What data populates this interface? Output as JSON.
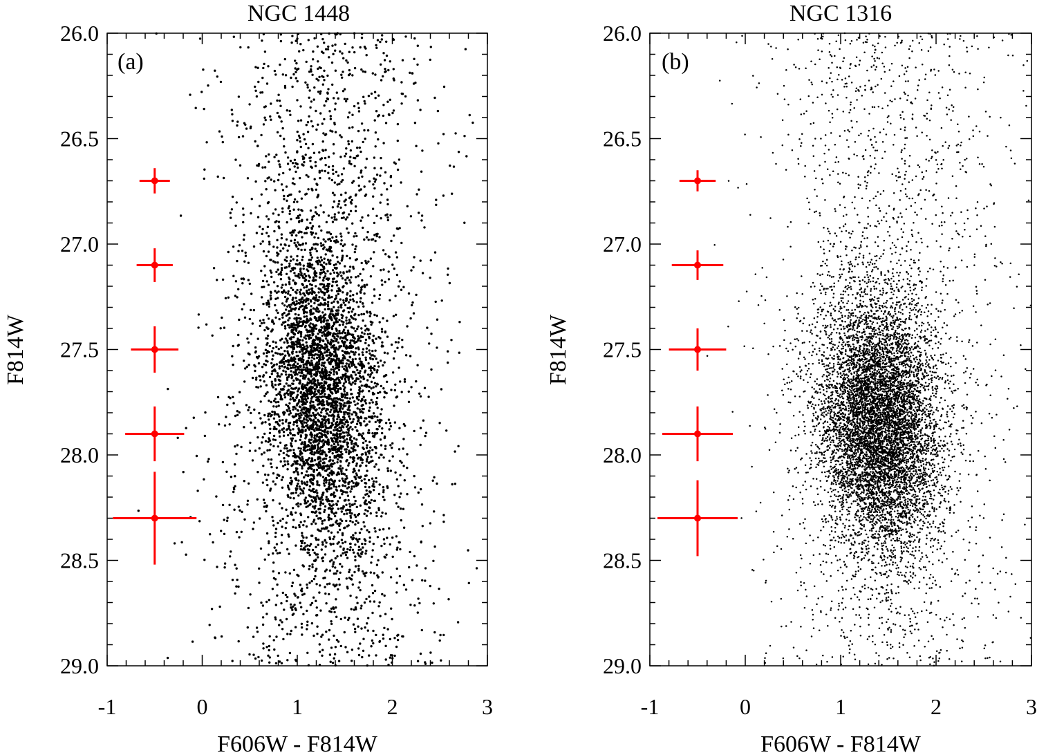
{
  "chart_data": [
    {
      "type": "scatter",
      "panel": "a",
      "title": "NGC 1448",
      "panel_label": "(a)",
      "xlabel": "F606W - F814W",
      "ylabel": "F814W",
      "xlim": [
        -1,
        3
      ],
      "ylim": [
        29.0,
        26.0
      ],
      "y_inverted": true,
      "x_ticks": [
        -1,
        0,
        1,
        2,
        3
      ],
      "x_tick_labels": [
        "-1",
        "0",
        "1",
        "2",
        "3"
      ],
      "y_ticks": [
        26.0,
        26.5,
        27.0,
        27.5,
        28.0,
        28.5,
        29.0
      ],
      "y_tick_labels": [
        "26.0",
        "26.5",
        "27.0",
        "27.5",
        "28.0",
        "28.5",
        "29.0"
      ],
      "point_color": "#000000",
      "error_bar_color": "#ff0000",
      "error_bars": [
        {
          "x": -0.5,
          "y": 26.7,
          "xerr": 0.16,
          "yerr": 0.06
        },
        {
          "x": -0.5,
          "y": 27.1,
          "xerr": 0.19,
          "yerr": 0.08
        },
        {
          "x": -0.5,
          "y": 27.5,
          "xerr": 0.25,
          "yerr": 0.11
        },
        {
          "x": -0.5,
          "y": 27.9,
          "xerr": 0.31,
          "yerr": 0.13
        },
        {
          "x": -0.5,
          "y": 28.3,
          "xerr": 0.44,
          "yerr": 0.22
        }
      ],
      "distribution": {
        "n_points": 5200,
        "core": {
          "x_mean": 1.25,
          "x_sigma": 0.3,
          "y_mean": 27.7,
          "y_sigma": 0.38,
          "fraction": 0.62
        },
        "halo": {
          "x_mean": 1.3,
          "x_sigma": 0.58,
          "y_min": 26.0,
          "y_max": 29.0,
          "fraction": 0.38
        },
        "seed": 1448
      }
    },
    {
      "type": "scatter",
      "panel": "b",
      "title": "NGC 1316",
      "panel_label": "(b)",
      "xlabel": "F606W - F814W",
      "ylabel": "F814W",
      "xlim": [
        -1,
        3
      ],
      "ylim": [
        29.0,
        26.0
      ],
      "y_inverted": true,
      "x_ticks": [
        -1,
        0,
        1,
        2,
        3
      ],
      "x_tick_labels": [
        "-1",
        "0",
        "1",
        "2",
        "3"
      ],
      "y_ticks": [
        26.0,
        26.5,
        27.0,
        27.5,
        28.0,
        28.5,
        29.0
      ],
      "y_tick_labels": [
        "26.0",
        "26.5",
        "27.0",
        "27.5",
        "28.0",
        "28.5",
        "29.0"
      ],
      "point_color": "#000000",
      "error_bar_color": "#ff0000",
      "error_bars": [
        {
          "x": -0.5,
          "y": 26.7,
          "xerr": 0.19,
          "yerr": 0.05
        },
        {
          "x": -0.5,
          "y": 27.1,
          "xerr": 0.27,
          "yerr": 0.07
        },
        {
          "x": -0.5,
          "y": 27.5,
          "xerr": 0.3,
          "yerr": 0.1
        },
        {
          "x": -0.5,
          "y": 27.9,
          "xerr": 0.37,
          "yerr": 0.13
        },
        {
          "x": -0.5,
          "y": 28.3,
          "xerr": 0.42,
          "yerr": 0.18
        }
      ],
      "distribution": {
        "n_points": 9000,
        "core": {
          "x_mean": 1.4,
          "x_sigma": 0.32,
          "y_mean": 27.85,
          "y_sigma": 0.3,
          "fraction": 0.78
        },
        "halo": {
          "x_mean": 1.5,
          "x_sigma": 0.6,
          "y_min": 26.0,
          "y_max": 29.0,
          "fraction": 0.22
        },
        "seed": 1316
      }
    }
  ]
}
